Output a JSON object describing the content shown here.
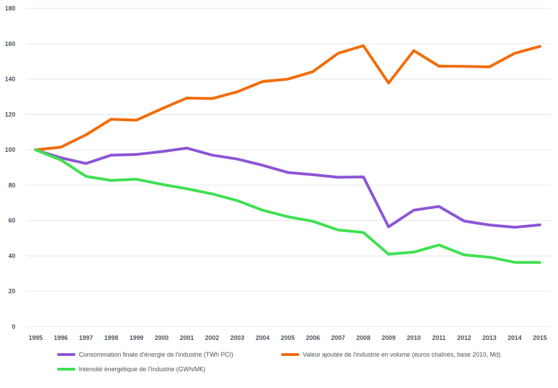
{
  "chart_data": {
    "type": "line",
    "title": "",
    "xlabel": "",
    "ylabel": "",
    "ylim": [
      0,
      180
    ],
    "yticks": [
      "0",
      "20",
      "40",
      "60",
      "80",
      "100",
      "120",
      "140",
      "160",
      "180"
    ],
    "grid": "horizontal",
    "legend_position": "bottom",
    "x": [
      "1995",
      "1996",
      "1997",
      "1998",
      "1999",
      "2000",
      "2001",
      "2002",
      "2003",
      "2004",
      "2005",
      "2006",
      "2007",
      "2008",
      "2009",
      "2010",
      "2011",
      "2012",
      "2013",
      "2014",
      "2015"
    ],
    "series": [
      {
        "name": "Consommation finale d'énergie de l'industrie (TWh PCI)",
        "color": "#8c55d6",
        "values": [
          100,
          95.5,
          92.3,
          97,
          97.4,
          99,
          101,
          97,
          94.8,
          91.3,
          87.2,
          86,
          84.5,
          84.7,
          56.5,
          65.9,
          68,
          59.7,
          57.5,
          56.2,
          57.6
        ]
      },
      {
        "name": "Valeur ajoutée de l'industrie en volume (euros chaînés, base 2010, Md)",
        "color": "#f26c0a",
        "values": [
          100,
          101.5,
          108.5,
          117.3,
          116.8,
          123.2,
          129.3,
          129,
          132.8,
          138.6,
          140,
          144.2,
          154.6,
          158.9,
          137.8,
          156.1,
          147.3,
          147.2,
          146.9,
          154.6,
          158.5
        ]
      },
      {
        "name": "Intensité énergétique de l'Industrie (GWh/M€)",
        "color": "#3fe052",
        "values": [
          100,
          94.3,
          85,
          82.7,
          83.4,
          80.5,
          78,
          75.1,
          71.3,
          65.9,
          62.2,
          59.6,
          54.7,
          53.3,
          41,
          42.2,
          46.2,
          40.6,
          39.3,
          36.4,
          36.3
        ]
      }
    ]
  }
}
